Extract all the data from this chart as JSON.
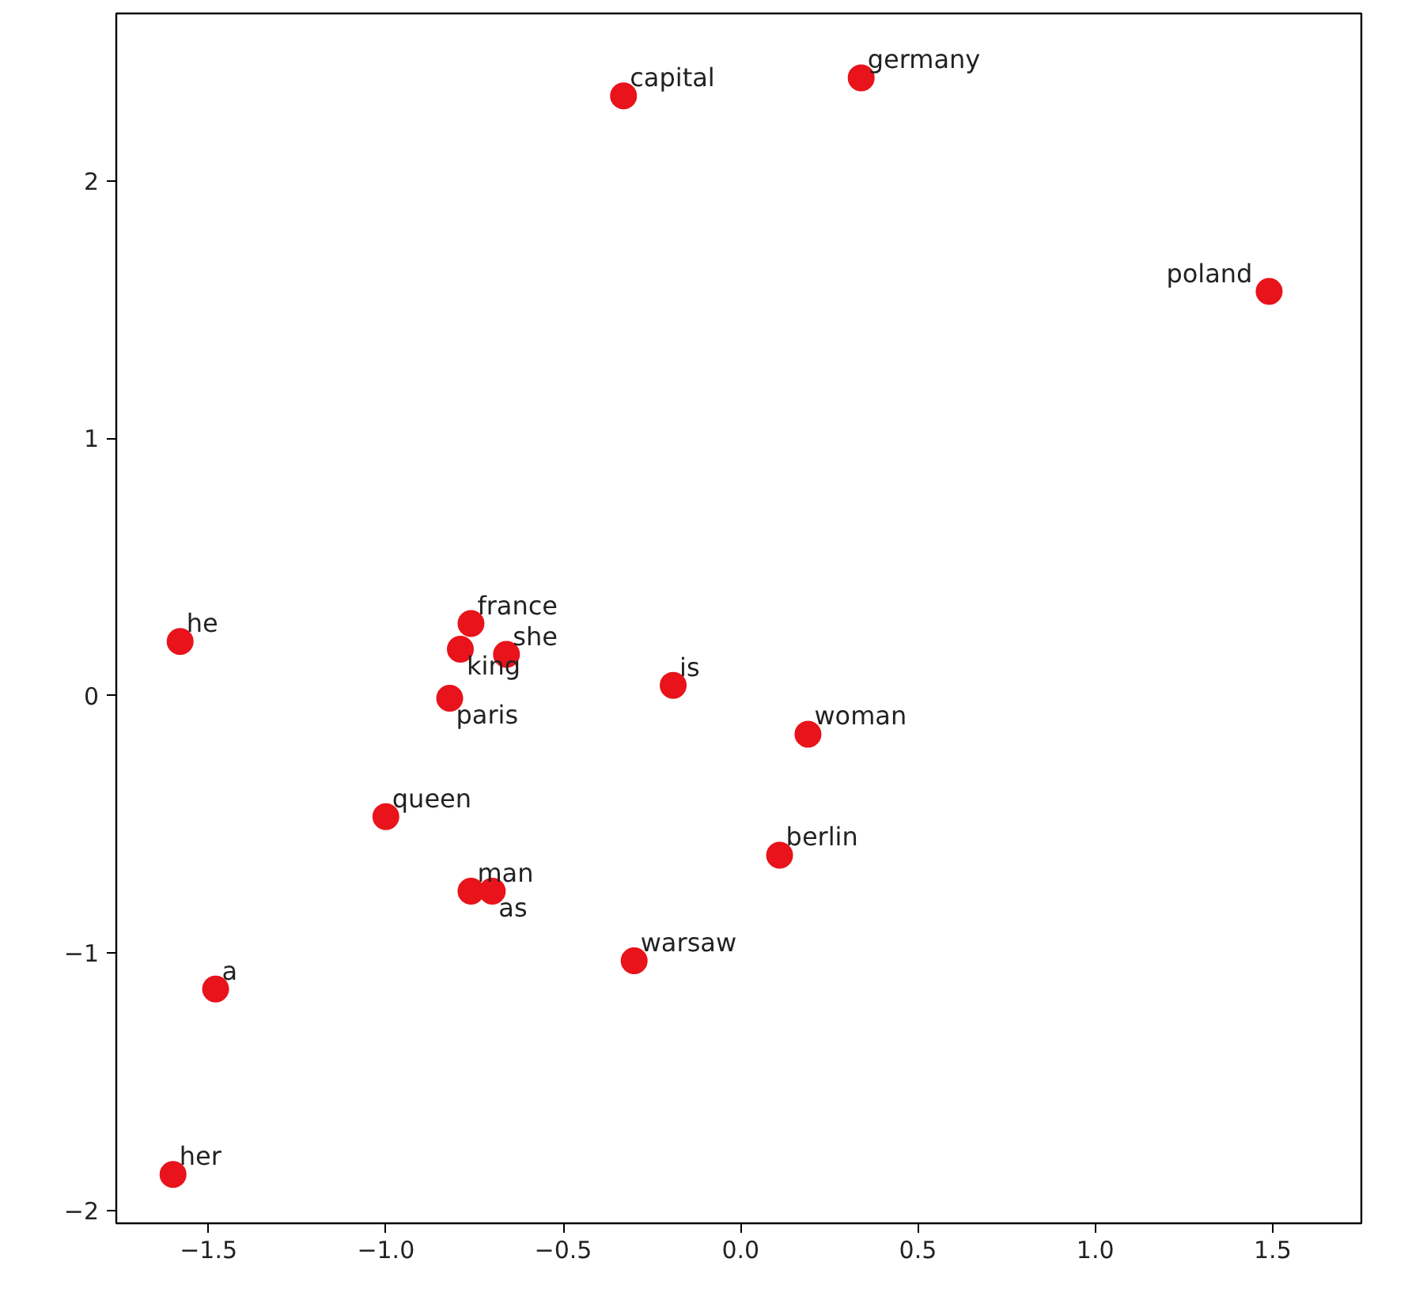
{
  "chart_data": {
    "type": "scatter",
    "marker": "circle",
    "grid": false,
    "x": [
      -0.33,
      0.34,
      1.49,
      -1.58,
      -0.76,
      -0.79,
      -0.66,
      -0.82,
      -0.19,
      0.19,
      -1.0,
      -0.76,
      -0.7,
      0.11,
      -0.3,
      -1.48,
      -1.6
    ],
    "series": [
      {
        "color": "#e8131b",
        "values": [
          2.33,
          2.4,
          1.57,
          0.21,
          0.28,
          0.18,
          0.16,
          -0.01,
          0.04,
          -0.15,
          -0.47,
          -0.76,
          -0.76,
          -0.62,
          -1.03,
          -1.14,
          -1.86
        ]
      }
    ],
    "annotations": [
      {
        "text": "capital",
        "x": -0.33,
        "y": 2.33
      },
      {
        "text": "germany",
        "x": 0.34,
        "y": 2.4
      },
      {
        "text": "poland",
        "x": 1.49,
        "y": 1.57
      },
      {
        "text": "he",
        "x": -1.58,
        "y": 0.21
      },
      {
        "text": "france",
        "x": -0.76,
        "y": 0.28
      },
      {
        "text": "king",
        "x": -0.79,
        "y": 0.18
      },
      {
        "text": "she",
        "x": -0.66,
        "y": 0.16
      },
      {
        "text": "paris",
        "x": -0.82,
        "y": -0.01
      },
      {
        "text": "is",
        "x": -0.19,
        "y": 0.04
      },
      {
        "text": "woman",
        "x": 0.19,
        "y": -0.15
      },
      {
        "text": "queen",
        "x": -1.0,
        "y": -0.47
      },
      {
        "text": "man",
        "x": -0.76,
        "y": -0.76
      },
      {
        "text": "as",
        "x": -0.7,
        "y": -0.76
      },
      {
        "text": "berlin",
        "x": 0.11,
        "y": -0.62
      },
      {
        "text": "warsaw",
        "x": -0.3,
        "y": -1.03
      },
      {
        "text": "a",
        "x": -1.48,
        "y": -1.14
      },
      {
        "text": "her",
        "x": -1.6,
        "y": -1.86
      }
    ],
    "xlim": [
      -1.76,
      1.75
    ],
    "ylim": [
      -2.05,
      2.65
    ],
    "xticks": [
      {
        "value": -1.5,
        "label": "−1.5"
      },
      {
        "value": -1.0,
        "label": "−1.0"
      },
      {
        "value": -0.5,
        "label": "−0.5"
      },
      {
        "value": 0.0,
        "label": "0.0"
      },
      {
        "value": 0.5,
        "label": "0.5"
      },
      {
        "value": 1.0,
        "label": "1.0"
      },
      {
        "value": 1.5,
        "label": "1.5"
      }
    ],
    "yticks": [
      {
        "value": -2,
        "label": "−2"
      },
      {
        "value": -1,
        "label": "−1"
      },
      0,
      1,
      2
    ]
  }
}
